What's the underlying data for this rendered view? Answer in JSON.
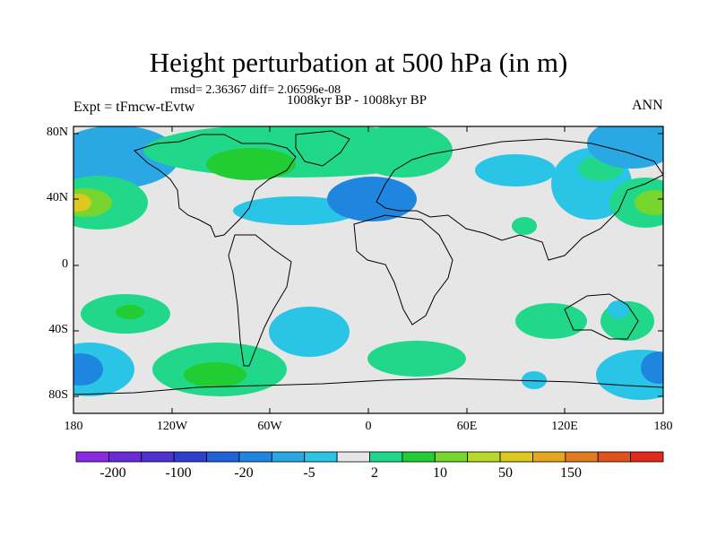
{
  "title": "Height perturbation at 500 hPa (in m)",
  "stats": "rmsd= 2.36367 diff= 2.06596e-08",
  "period": "1008kyr BP - 1008kyr BP",
  "experiment": "Expt = tFmcw-tEvtw",
  "season": "ANN",
  "lat_labels": [
    "80N",
    "40N",
    "0",
    "40S",
    "80S"
  ],
  "lon_labels": [
    "180",
    "120W",
    "60W",
    "0",
    "60E",
    "120E",
    "180"
  ],
  "colorbar": {
    "labels": [
      "-200",
      "-100",
      "-20",
      "-5",
      "2",
      "10",
      "50",
      "150"
    ],
    "colors": [
      "#8a2be2",
      "#6a2ad8",
      "#5030d0",
      "#2e3fd0",
      "#1f63d8",
      "#1f86e0",
      "#2aa8e4",
      "#29c4e6",
      "#e6e6e6",
      "#21d88a",
      "#22cc33",
      "#76d62e",
      "#b8d82a",
      "#dcc81e",
      "#e8a61e",
      "#e07a1e",
      "#e0521c",
      "#e02a1c"
    ]
  },
  "map": {
    "background": "#e6e6e6",
    "legend_colors": {
      "light_cyan": "#2aa8e4",
      "cyan": "#29c4e6",
      "blue": "#1f86e0",
      "light_green": "#21d88a",
      "green": "#22cc33",
      "yellow_green": "#b8d82a"
    }
  }
}
